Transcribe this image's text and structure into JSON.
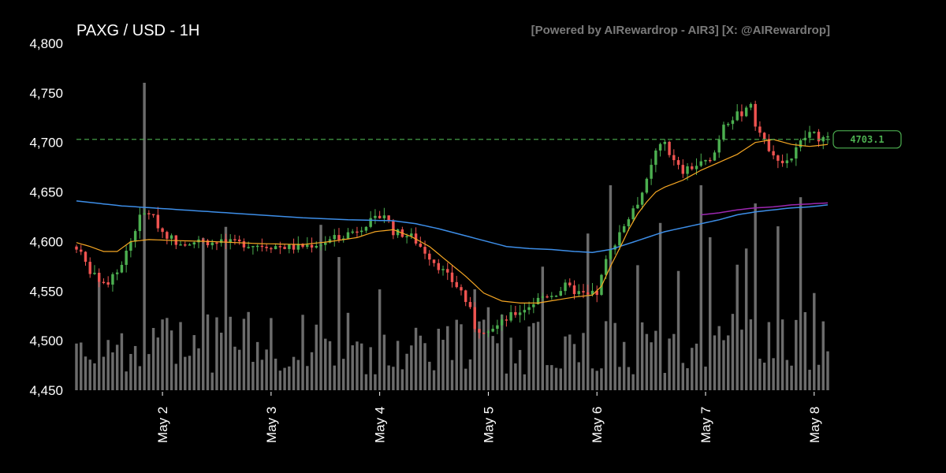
{
  "header": {
    "title": "PAXG / USD - 1H",
    "credit": "[Powered by AIRewardrop - AIR3] [X: @AIRewardrop]"
  },
  "colors": {
    "background": "#000000",
    "up": "#4caf50",
    "down": "#ef5350",
    "volume": "#7f7f7f",
    "ma_short": "#f5a623",
    "ma_long": "#3d8ee8",
    "ma_purple": "#9c27b0",
    "current_line": "#4caf50"
  },
  "chart_data": {
    "type": "candlestick",
    "title": "PAXG / USD - 1H",
    "ylim": [
      4450,
      4800
    ],
    "y_ticks": [
      "4,450",
      "4,500",
      "4,550",
      "4,600",
      "4,650",
      "4,700",
      "4,750",
      "4,800"
    ],
    "y_tick_values": [
      4450,
      4500,
      4550,
      4600,
      4650,
      4700,
      4750,
      4800
    ],
    "x_ticks": [
      "May 2",
      "May 3",
      "May 4",
      "May 5",
      "May 6",
      "May 7",
      "May 8"
    ],
    "x_tick_hours": [
      19,
      43,
      67,
      91,
      115,
      139,
      163
    ],
    "x_range_hours": [
      0,
      166
    ],
    "current_price": 4703.1,
    "current_price_label": "4703.1",
    "price_anchors": [
      [
        0,
        4595
      ],
      [
        3,
        4570
      ],
      [
        6,
        4555
      ],
      [
        9,
        4568
      ],
      [
        12,
        4600
      ],
      [
        14,
        4625
      ],
      [
        16,
        4630
      ],
      [
        19,
        4610
      ],
      [
        22,
        4600
      ],
      [
        28,
        4600
      ],
      [
        36,
        4598
      ],
      [
        42,
        4596
      ],
      [
        48,
        4594
      ],
      [
        54,
        4598
      ],
      [
        58,
        4605
      ],
      [
        62,
        4612
      ],
      [
        64,
        4618
      ],
      [
        66,
        4622
      ],
      [
        68,
        4628
      ],
      [
        70,
        4610
      ],
      [
        74,
        4605
      ],
      [
        77,
        4590
      ],
      [
        80,
        4575
      ],
      [
        83,
        4560
      ],
      [
        85,
        4550
      ],
      [
        87,
        4530
      ],
      [
        88,
        4510
      ],
      [
        90,
        4512
      ],
      [
        93,
        4515
      ],
      [
        96,
        4525
      ],
      [
        100,
        4535
      ],
      [
        103,
        4545
      ],
      [
        106,
        4548
      ],
      [
        108,
        4555
      ],
      [
        110,
        4550
      ],
      [
        113,
        4545
      ],
      [
        115,
        4548
      ],
      [
        117,
        4580
      ],
      [
        120,
        4610
      ],
      [
        123,
        4630
      ],
      [
        126,
        4660
      ],
      [
        128,
        4690
      ],
      [
        130,
        4700
      ],
      [
        132,
        4680
      ],
      [
        134,
        4670
      ],
      [
        136,
        4675
      ],
      [
        139,
        4680
      ],
      [
        141,
        4690
      ],
      [
        143,
        4720
      ],
      [
        145,
        4725
      ],
      [
        147,
        4730
      ],
      [
        149,
        4740
      ],
      [
        150,
        4720
      ],
      [
        152,
        4700
      ],
      [
        154,
        4690
      ],
      [
        156,
        4680
      ],
      [
        158,
        4685
      ],
      [
        160,
        4700
      ],
      [
        162,
        4710
      ],
      [
        164,
        4705
      ],
      [
        166,
        4703
      ]
    ],
    "ma_short_anchors": [
      [
        0,
        4599
      ],
      [
        3,
        4595
      ],
      [
        6,
        4590
      ],
      [
        9,
        4590
      ],
      [
        12,
        4600
      ],
      [
        16,
        4602
      ],
      [
        22,
        4601
      ],
      [
        30,
        4600
      ],
      [
        40,
        4598
      ],
      [
        50,
        4597
      ],
      [
        56,
        4600
      ],
      [
        62,
        4604
      ],
      [
        66,
        4610
      ],
      [
        70,
        4612
      ],
      [
        74,
        4605
      ],
      [
        78,
        4595
      ],
      [
        82,
        4580
      ],
      [
        86,
        4565
      ],
      [
        90,
        4548
      ],
      [
        94,
        4540
      ],
      [
        98,
        4538
      ],
      [
        102,
        4538
      ],
      [
        106,
        4541
      ],
      [
        110,
        4544
      ],
      [
        114,
        4546
      ],
      [
        116,
        4555
      ],
      [
        118,
        4575
      ],
      [
        120,
        4593
      ],
      [
        122,
        4612
      ],
      [
        124,
        4628
      ],
      [
        126,
        4640
      ],
      [
        128,
        4650
      ],
      [
        130,
        4655
      ],
      [
        134,
        4662
      ],
      [
        138,
        4672
      ],
      [
        142,
        4680
      ],
      [
        146,
        4688
      ],
      [
        150,
        4700
      ],
      [
        154,
        4703
      ],
      [
        158,
        4698
      ],
      [
        162,
        4696
      ],
      [
        166,
        4698
      ]
    ],
    "ma_long_anchors": [
      [
        0,
        4641
      ],
      [
        10,
        4636
      ],
      [
        20,
        4633
      ],
      [
        30,
        4630
      ],
      [
        40,
        4627
      ],
      [
        50,
        4624
      ],
      [
        60,
        4622
      ],
      [
        70,
        4621
      ],
      [
        75,
        4618
      ],
      [
        80,
        4613
      ],
      [
        85,
        4607
      ],
      [
        90,
        4601
      ],
      [
        95,
        4595
      ],
      [
        100,
        4593
      ],
      [
        105,
        4592
      ],
      [
        110,
        4590
      ],
      [
        114,
        4589
      ],
      [
        118,
        4592
      ],
      [
        122,
        4598
      ],
      [
        126,
        4604
      ],
      [
        130,
        4610
      ],
      [
        134,
        4614
      ],
      [
        138,
        4618
      ],
      [
        142,
        4622
      ],
      [
        146,
        4627
      ],
      [
        150,
        4630
      ],
      [
        154,
        4632
      ],
      [
        158,
        4634
      ],
      [
        162,
        4635
      ],
      [
        166,
        4637
      ]
    ],
    "ma_purple_anchors": [
      [
        138,
        4627
      ],
      [
        142,
        4629
      ],
      [
        146,
        4632
      ],
      [
        150,
        4634
      ],
      [
        154,
        4635
      ],
      [
        158,
        4637
      ],
      [
        162,
        4638
      ],
      [
        166,
        4639
      ]
    ],
    "volume_scale": "relative"
  }
}
